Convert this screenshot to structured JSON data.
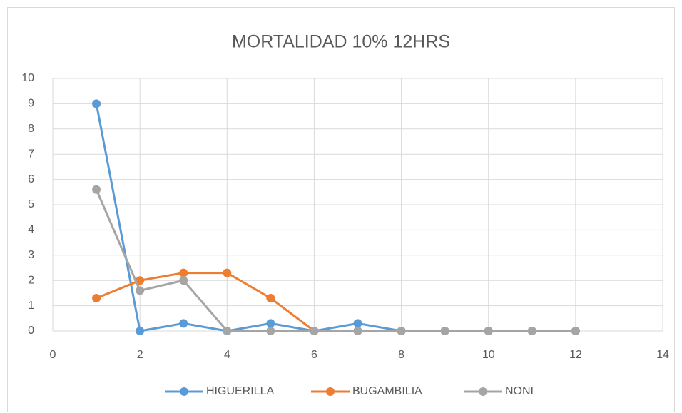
{
  "chart_data": {
    "type": "line",
    "title": "MORTALIDAD 10% 12HRS",
    "x": [
      1,
      2,
      3,
      4,
      5,
      6,
      7,
      8,
      9,
      10,
      11,
      12
    ],
    "series": [
      {
        "name": "HIGUERILLA",
        "color": "#5b9bd5",
        "values": [
          9,
          0,
          0.3,
          0,
          0.3,
          0,
          0.3,
          0,
          0,
          0,
          0,
          0
        ]
      },
      {
        "name": "BUGAMBILIA",
        "color": "#ed7d31",
        "values": [
          1.3,
          2,
          2.3,
          2.3,
          1.3,
          0,
          0,
          0,
          0,
          0,
          0,
          0
        ]
      },
      {
        "name": "NONI",
        "color": "#a5a5a5",
        "values": [
          5.6,
          1.6,
          2,
          0,
          0,
          0,
          0,
          0,
          0,
          0,
          0,
          0
        ]
      }
    ],
    "xlim": [
      0,
      14
    ],
    "xticks": [
      0,
      2,
      4,
      6,
      8,
      10,
      12,
      14
    ],
    "ylim": [
      0,
      10
    ],
    "yticks": [
      0,
      1,
      2,
      3,
      4,
      5,
      6,
      7,
      8,
      9,
      10
    ],
    "grid": true,
    "legend": "bottom"
  }
}
